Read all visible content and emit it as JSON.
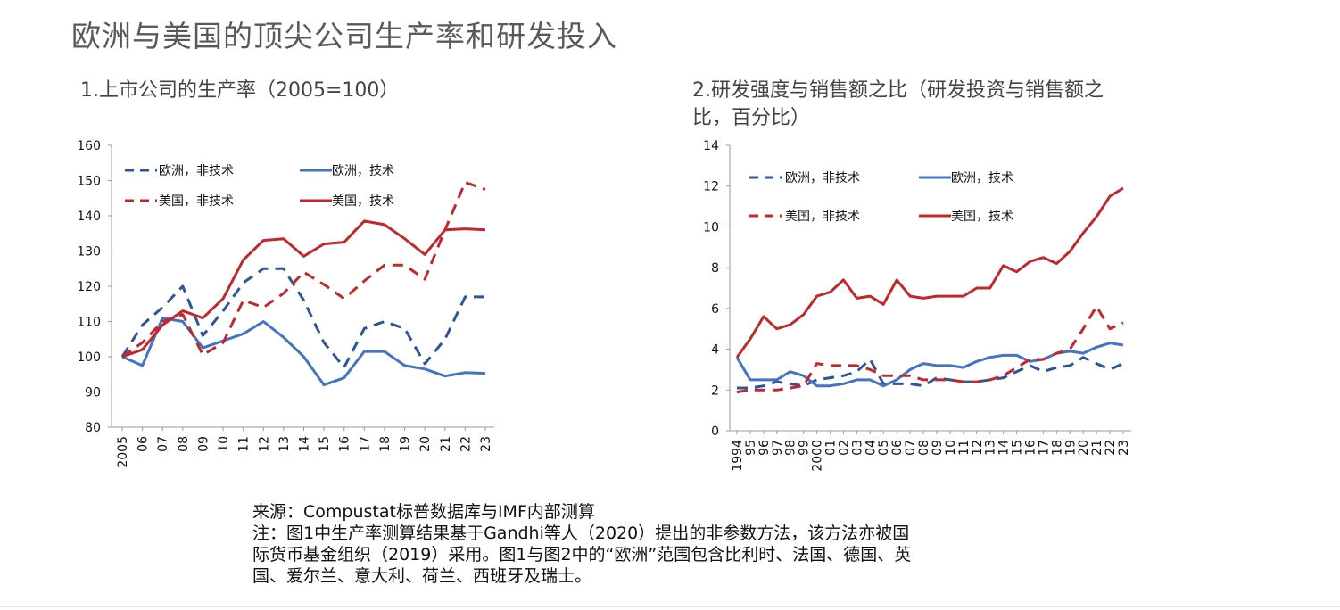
{
  "title": "欧洲与美国的顶尖公司生产率和研发投入",
  "chart_data": [
    {
      "type": "line",
      "title": "1.上市公司的生产率（2005=100）",
      "x_tick_labels": [
        "2005",
        "06",
        "07",
        "08",
        "09",
        "10",
        "11",
        "12",
        "13",
        "14",
        "15",
        "16",
        "17",
        "18",
        "19",
        "20",
        "21",
        "22",
        "23"
      ],
      "ylim": [
        80,
        160
      ],
      "y_ticks": [
        80,
        90,
        100,
        110,
        120,
        130,
        140,
        150,
        160
      ],
      "legend": [
        "欧洲，非技术",
        "欧洲，技术",
        "美国，非技术",
        "美国，技术"
      ],
      "series": [
        {
          "name": "欧洲，非技术",
          "color": "#2e5597",
          "dash": true,
          "values": [
            100,
            109,
            114,
            120,
            106,
            113,
            121,
            125,
            125,
            116,
            104,
            97,
            108,
            110,
            108,
            98,
            105,
            117,
            117
          ]
        },
        {
          "name": "欧洲，技术",
          "color": "#4472c4",
          "dash": false,
          "values": [
            100,
            97.5,
            111,
            110,
            102.5,
            104.5,
            106.5,
            110,
            105.5,
            100,
            92,
            94,
            101.5,
            101.5,
            97.5,
            96.5,
            94.5,
            95.5,
            95.3
          ]
        },
        {
          "name": "美国，非技术",
          "color": "#c0282d",
          "dash": true,
          "values": [
            100,
            104,
            110,
            112,
            100.5,
            104,
            116,
            114,
            118,
            124,
            120.5,
            116.5,
            121.5,
            126,
            126,
            122,
            136,
            149.5,
            147.5
          ]
        },
        {
          "name": "美国，技术",
          "color": "#c0282d",
          "dash": false,
          "values": [
            100,
            102,
            109,
            113,
            111,
            116.5,
            127.5,
            133,
            133.5,
            128.5,
            132,
            132.5,
            138.5,
            137.5,
            133.5,
            129,
            136,
            136.3,
            136
          ]
        }
      ]
    },
    {
      "type": "line",
      "title": "2.研发强度与销售额之比（研发投资与销售额之比，百分比）",
      "x_tick_labels": [
        "1994",
        "95",
        "96",
        "97",
        "98",
        "99",
        "2000",
        "01",
        "02",
        "03",
        "04",
        "05",
        "06",
        "07",
        "08",
        "09",
        "10",
        "11",
        "12",
        "13",
        "14",
        "15",
        "16",
        "17",
        "18",
        "19",
        "20",
        "21",
        "22",
        "23"
      ],
      "ylim": [
        0,
        14
      ],
      "y_ticks": [
        0,
        2,
        4,
        6,
        8,
        10,
        12,
        14
      ],
      "legend": [
        "欧洲，非技术",
        "欧洲，技术",
        "美国，非技术",
        "美国，技术"
      ],
      "series": [
        {
          "name": "欧洲，非技术",
          "color": "#2e5597",
          "dash": true,
          "values": [
            2.1,
            2.1,
            2.2,
            2.4,
            2.3,
            2.2,
            2.5,
            2.6,
            2.7,
            2.9,
            3.5,
            2.3,
            2.3,
            2.3,
            2.2,
            2.6,
            2.5,
            2.4,
            2.4,
            2.5,
            2.6,
            2.9,
            3.2,
            2.9,
            3.1,
            3.2,
            3.6,
            3.3,
            3.0,
            3.3
          ]
        },
        {
          "name": "欧洲，技术",
          "color": "#4472c4",
          "dash": false,
          "values": [
            3.6,
            2.5,
            2.5,
            2.5,
            2.9,
            2.7,
            2.2,
            2.2,
            2.3,
            2.5,
            2.5,
            2.2,
            2.5,
            3.0,
            3.3,
            3.2,
            3.2,
            3.1,
            3.4,
            3.6,
            3.7,
            3.7,
            3.4,
            3.5,
            3.8,
            3.9,
            3.8,
            4.1,
            4.3,
            4.2
          ]
        },
        {
          "name": "美国，非技术",
          "color": "#c0282d",
          "dash": true,
          "values": [
            1.9,
            2.0,
            2.0,
            2.0,
            2.1,
            2.2,
            3.3,
            3.2,
            3.2,
            3.2,
            3.0,
            2.7,
            2.7,
            2.7,
            2.5,
            2.5,
            2.5,
            2.4,
            2.4,
            2.5,
            2.7,
            3.1,
            3.5,
            3.5,
            3.8,
            4.0,
            5.0,
            6.1,
            5.0,
            5.3
          ]
        },
        {
          "name": "美国，技术",
          "color": "#c0282d",
          "dash": false,
          "values": [
            3.6,
            4.5,
            5.6,
            5.0,
            5.2,
            5.7,
            6.6,
            6.8,
            7.4,
            6.5,
            6.6,
            6.2,
            7.4,
            6.6,
            6.5,
            6.6,
            6.6,
            6.6,
            7.0,
            7.0,
            8.1,
            7.8,
            8.3,
            8.5,
            8.2,
            8.8,
            9.7,
            10.5,
            11.5,
            11.9
          ]
        }
      ]
    }
  ],
  "notes": {
    "source": "来源：Compustat标普数据库与IMF内部测算",
    "note_line1": "注：图1中生产率测算结果基于Gandhi等人（2020）提出的非参数方法，该方法亦被国",
    "note_line2": "际货币基金组织（2019）采用。图1与图2中的“欧洲”范围包含比利时、法国、德国、英",
    "note_line3": "国、爱尔兰、意大利、荷兰、西班牙及瑞士。"
  }
}
